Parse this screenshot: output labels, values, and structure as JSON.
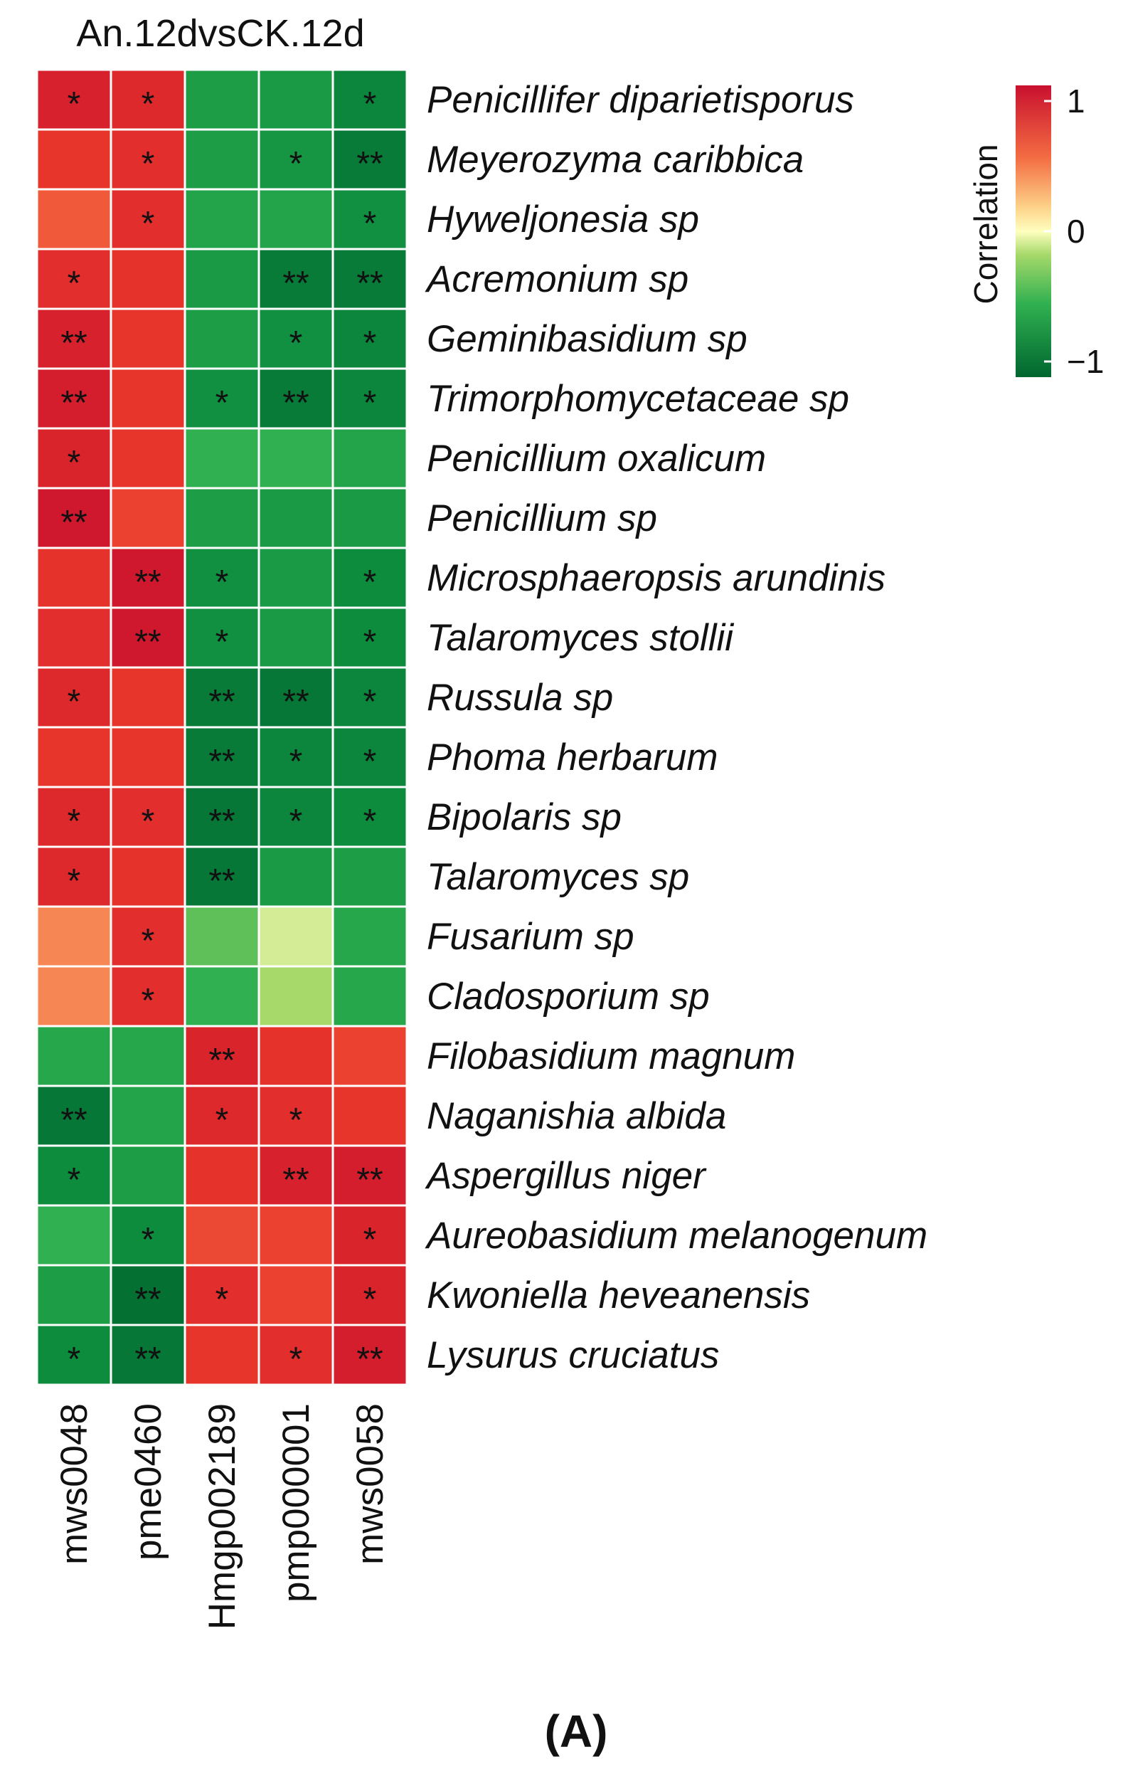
{
  "figure": {
    "panel_label": "(A)"
  },
  "chart_data": {
    "type": "heatmap",
    "title": "An.12dvsCK.12d",
    "columns": [
      "mws0048",
      "pme0460",
      "Hmgp002189",
      "pmp000001",
      "mws0058"
    ],
    "rows": [
      "Penicillifer diparietisporus",
      "Meyerozyma caribbica",
      "Hyweljonesia sp",
      "Acremonium sp",
      "Geminibasidium sp",
      "Trimorphomycetaceae sp",
      "Penicillium oxalicum",
      "Penicillium sp",
      "Microsphaeropsis arundinis",
      "Talaromyces stollii",
      "Russula sp",
      "Phoma herbarum",
      "Bipolaris sp",
      "Talaromyces sp",
      "Fusarium sp",
      "Cladosporium sp",
      "Filobasidium magnum",
      "Naganishia albida",
      "Aspergillus niger",
      "Aureobasidium melanogenum",
      "Kwoniella heveanensis",
      "Lysurus cruciatus"
    ],
    "values": [
      [
        0.9,
        0.85,
        -0.7,
        -0.72,
        -0.85
      ],
      [
        0.78,
        0.82,
        -0.7,
        -0.75,
        -0.9
      ],
      [
        0.6,
        0.82,
        -0.65,
        -0.65,
        -0.8
      ],
      [
        0.82,
        0.8,
        -0.72,
        -0.9,
        -0.9
      ],
      [
        0.9,
        0.78,
        -0.7,
        -0.8,
        -0.85
      ],
      [
        0.92,
        0.78,
        -0.8,
        -0.9,
        -0.85
      ],
      [
        0.88,
        0.78,
        -0.55,
        -0.55,
        -0.65
      ],
      [
        0.95,
        0.72,
        -0.7,
        -0.72,
        -0.72
      ],
      [
        0.8,
        0.95,
        -0.8,
        -0.72,
        -0.82
      ],
      [
        0.82,
        0.95,
        -0.8,
        -0.72,
        -0.82
      ],
      [
        0.85,
        0.78,
        -0.9,
        -0.92,
        -0.85
      ],
      [
        0.78,
        0.78,
        -0.9,
        -0.85,
        -0.85
      ],
      [
        0.85,
        0.82,
        -0.92,
        -0.85,
        -0.82
      ],
      [
        0.85,
        0.8,
        -0.92,
        -0.72,
        -0.7
      ],
      [
        0.45,
        0.82,
        -0.45,
        -0.15,
        -0.62
      ],
      [
        0.45,
        0.82,
        -0.55,
        -0.3,
        -0.62
      ],
      [
        -0.62,
        -0.62,
        0.88,
        0.8,
        0.72
      ],
      [
        -0.92,
        -0.65,
        0.85,
        0.82,
        0.78
      ],
      [
        -0.82,
        -0.7,
        0.8,
        0.9,
        0.92
      ],
      [
        -0.55,
        -0.82,
        0.68,
        0.72,
        0.88
      ],
      [
        -0.7,
        -0.95,
        0.82,
        0.72,
        0.88
      ],
      [
        -0.82,
        -0.92,
        0.78,
        0.82,
        0.92
      ]
    ],
    "significance": [
      [
        "*",
        "*",
        "",
        "",
        "*"
      ],
      [
        "",
        "*",
        "",
        "*",
        "**"
      ],
      [
        "",
        "*",
        "",
        "",
        "*"
      ],
      [
        "*",
        "",
        "",
        "**",
        "**"
      ],
      [
        "**",
        "",
        "",
        "*",
        "*"
      ],
      [
        "**",
        "",
        "*",
        "**",
        "*"
      ],
      [
        "*",
        "",
        "",
        "",
        ""
      ],
      [
        "**",
        "",
        "",
        "",
        ""
      ],
      [
        "",
        "**",
        "*",
        "",
        "*"
      ],
      [
        "",
        "**",
        "*",
        "",
        "*"
      ],
      [
        "*",
        "",
        "**",
        "**",
        "*"
      ],
      [
        "",
        "",
        "**",
        "*",
        "*"
      ],
      [
        "*",
        "*",
        "**",
        "*",
        "*"
      ],
      [
        "*",
        "",
        "**",
        "",
        ""
      ],
      [
        "",
        "*",
        "",
        "",
        ""
      ],
      [
        "",
        "*",
        "",
        "",
        ""
      ],
      [
        "",
        "",
        "**",
        "",
        ""
      ],
      [
        "**",
        "",
        "*",
        "*",
        ""
      ],
      [
        "*",
        "",
        "",
        "**",
        "**"
      ],
      [
        "",
        "*",
        "",
        "",
        "*"
      ],
      [
        "",
        "**",
        "*",
        "",
        "*"
      ],
      [
        "*",
        "**",
        "",
        "*",
        "**"
      ]
    ],
    "colorbar": {
      "title": "Correlation",
      "ticks": [
        {
          "value": 1,
          "label": "1"
        },
        {
          "value": 0,
          "label": "0"
        },
        {
          "value": -1,
          "label": "−1"
        }
      ],
      "range": [
        -1,
        1
      ],
      "colors": {
        "low": "#00662f",
        "mid": "#ffffbf",
        "high": "#c8102e"
      }
    }
  }
}
